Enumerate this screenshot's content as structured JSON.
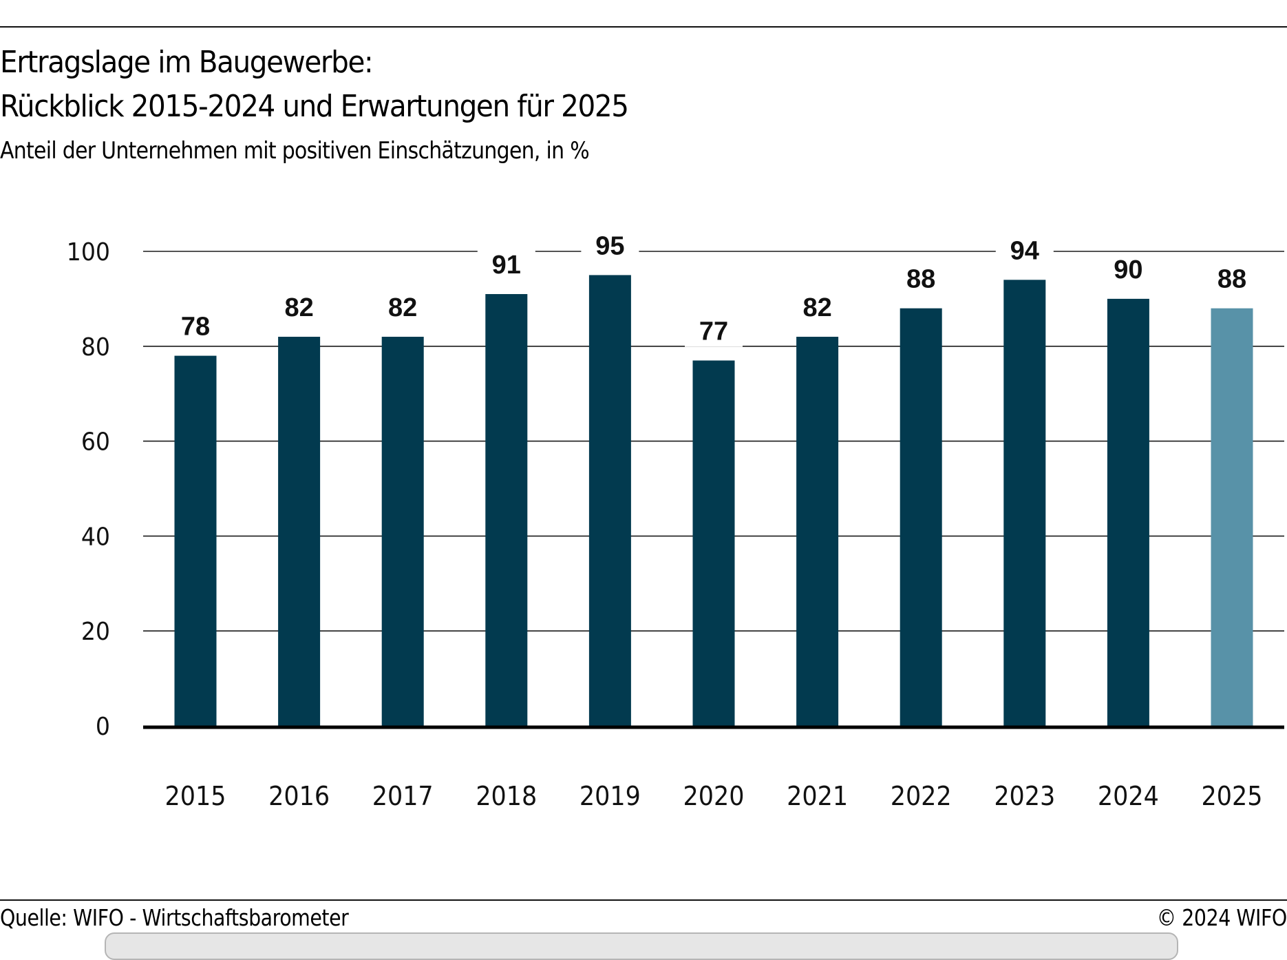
{
  "header": {
    "title_line1": "Ertragslage im Baugewerbe:",
    "title_line2": "Rückblick 2015-2024 und Erwartungen für 2025",
    "subtitle": "Anteil der Unternehmen mit positiven Einschätzungen, in %"
  },
  "footer": {
    "source": "Quelle: WIFO - Wirtschaftsbarometer",
    "copyright": "© 2024 WIFO"
  },
  "colors": {
    "actual": "#023a4f",
    "expectation": "#5892a8",
    "gridline": "#1a1a1a",
    "axis": "#000000"
  },
  "chart_data": {
    "type": "bar",
    "title": "Ertragslage im Baugewerbe: Rückblick 2015-2024 und Erwartungen für 2025",
    "subtitle": "Anteil der Unternehmen mit positiven Einschätzungen, in %",
    "xlabel": "",
    "ylabel": "",
    "ylim": [
      0,
      100
    ],
    "yticks": [
      0,
      20,
      40,
      60,
      80,
      100
    ],
    "grid": true,
    "legend": "none",
    "categories": [
      "2015",
      "2016",
      "2017",
      "2018",
      "2019",
      "2020",
      "2021",
      "2022",
      "2023",
      "2024",
      "2025"
    ],
    "values": [
      78,
      82,
      82,
      91,
      95,
      77,
      82,
      88,
      94,
      90,
      88
    ],
    "data_labels": [
      "78",
      "82",
      "82",
      "91",
      "95",
      "77",
      "82",
      "88",
      "94",
      "90",
      "88"
    ],
    "bar_kind": [
      "actual",
      "actual",
      "actual",
      "actual",
      "actual",
      "actual",
      "actual",
      "actual",
      "actual",
      "actual",
      "expectation"
    ]
  }
}
